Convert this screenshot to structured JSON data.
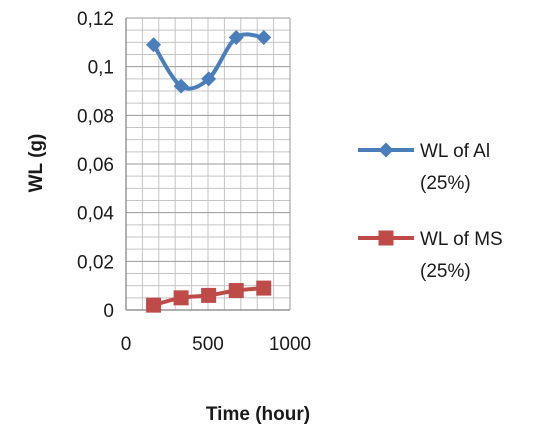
{
  "chart_data": {
    "type": "line",
    "title": "",
    "xlabel": "Time (hour)",
    "ylabel": "WL (g)",
    "xlim": [
      0,
      1000
    ],
    "ylim": [
      0,
      0.12
    ],
    "x_ticks": [
      {
        "value": 0,
        "label": "0"
      },
      {
        "value": 500,
        "label": "500"
      },
      {
        "value": 1000,
        "label": "1000"
      }
    ],
    "y_ticks": [
      {
        "value": 0,
        "label": "0"
      },
      {
        "value": 0.02,
        "label": "0,02"
      },
      {
        "value": 0.04,
        "label": "0,04"
      },
      {
        "value": 0.06,
        "label": "0,06"
      },
      {
        "value": 0.08,
        "label": "0,08"
      },
      {
        "value": 0.1,
        "label": "0,1"
      },
      {
        "value": 0.12,
        "label": "0,12"
      }
    ],
    "grid": true,
    "legend_position": "right",
    "series": [
      {
        "name_lines": [
          "WL of Al",
          "(25%)"
        ],
        "color": "#4a7ebb",
        "marker": "diamond",
        "smooth": true,
        "x": [
          168,
          336,
          504,
          672,
          840
        ],
        "values": [
          0.109,
          0.092,
          0.095,
          0.112,
          0.112
        ]
      },
      {
        "name_lines": [
          "WL of MS",
          "(25%)"
        ],
        "color": "#be4b48",
        "marker": "square",
        "smooth": true,
        "x": [
          168,
          336,
          504,
          672,
          840
        ],
        "values": [
          0.002,
          0.005,
          0.006,
          0.008,
          0.009
        ]
      }
    ]
  }
}
